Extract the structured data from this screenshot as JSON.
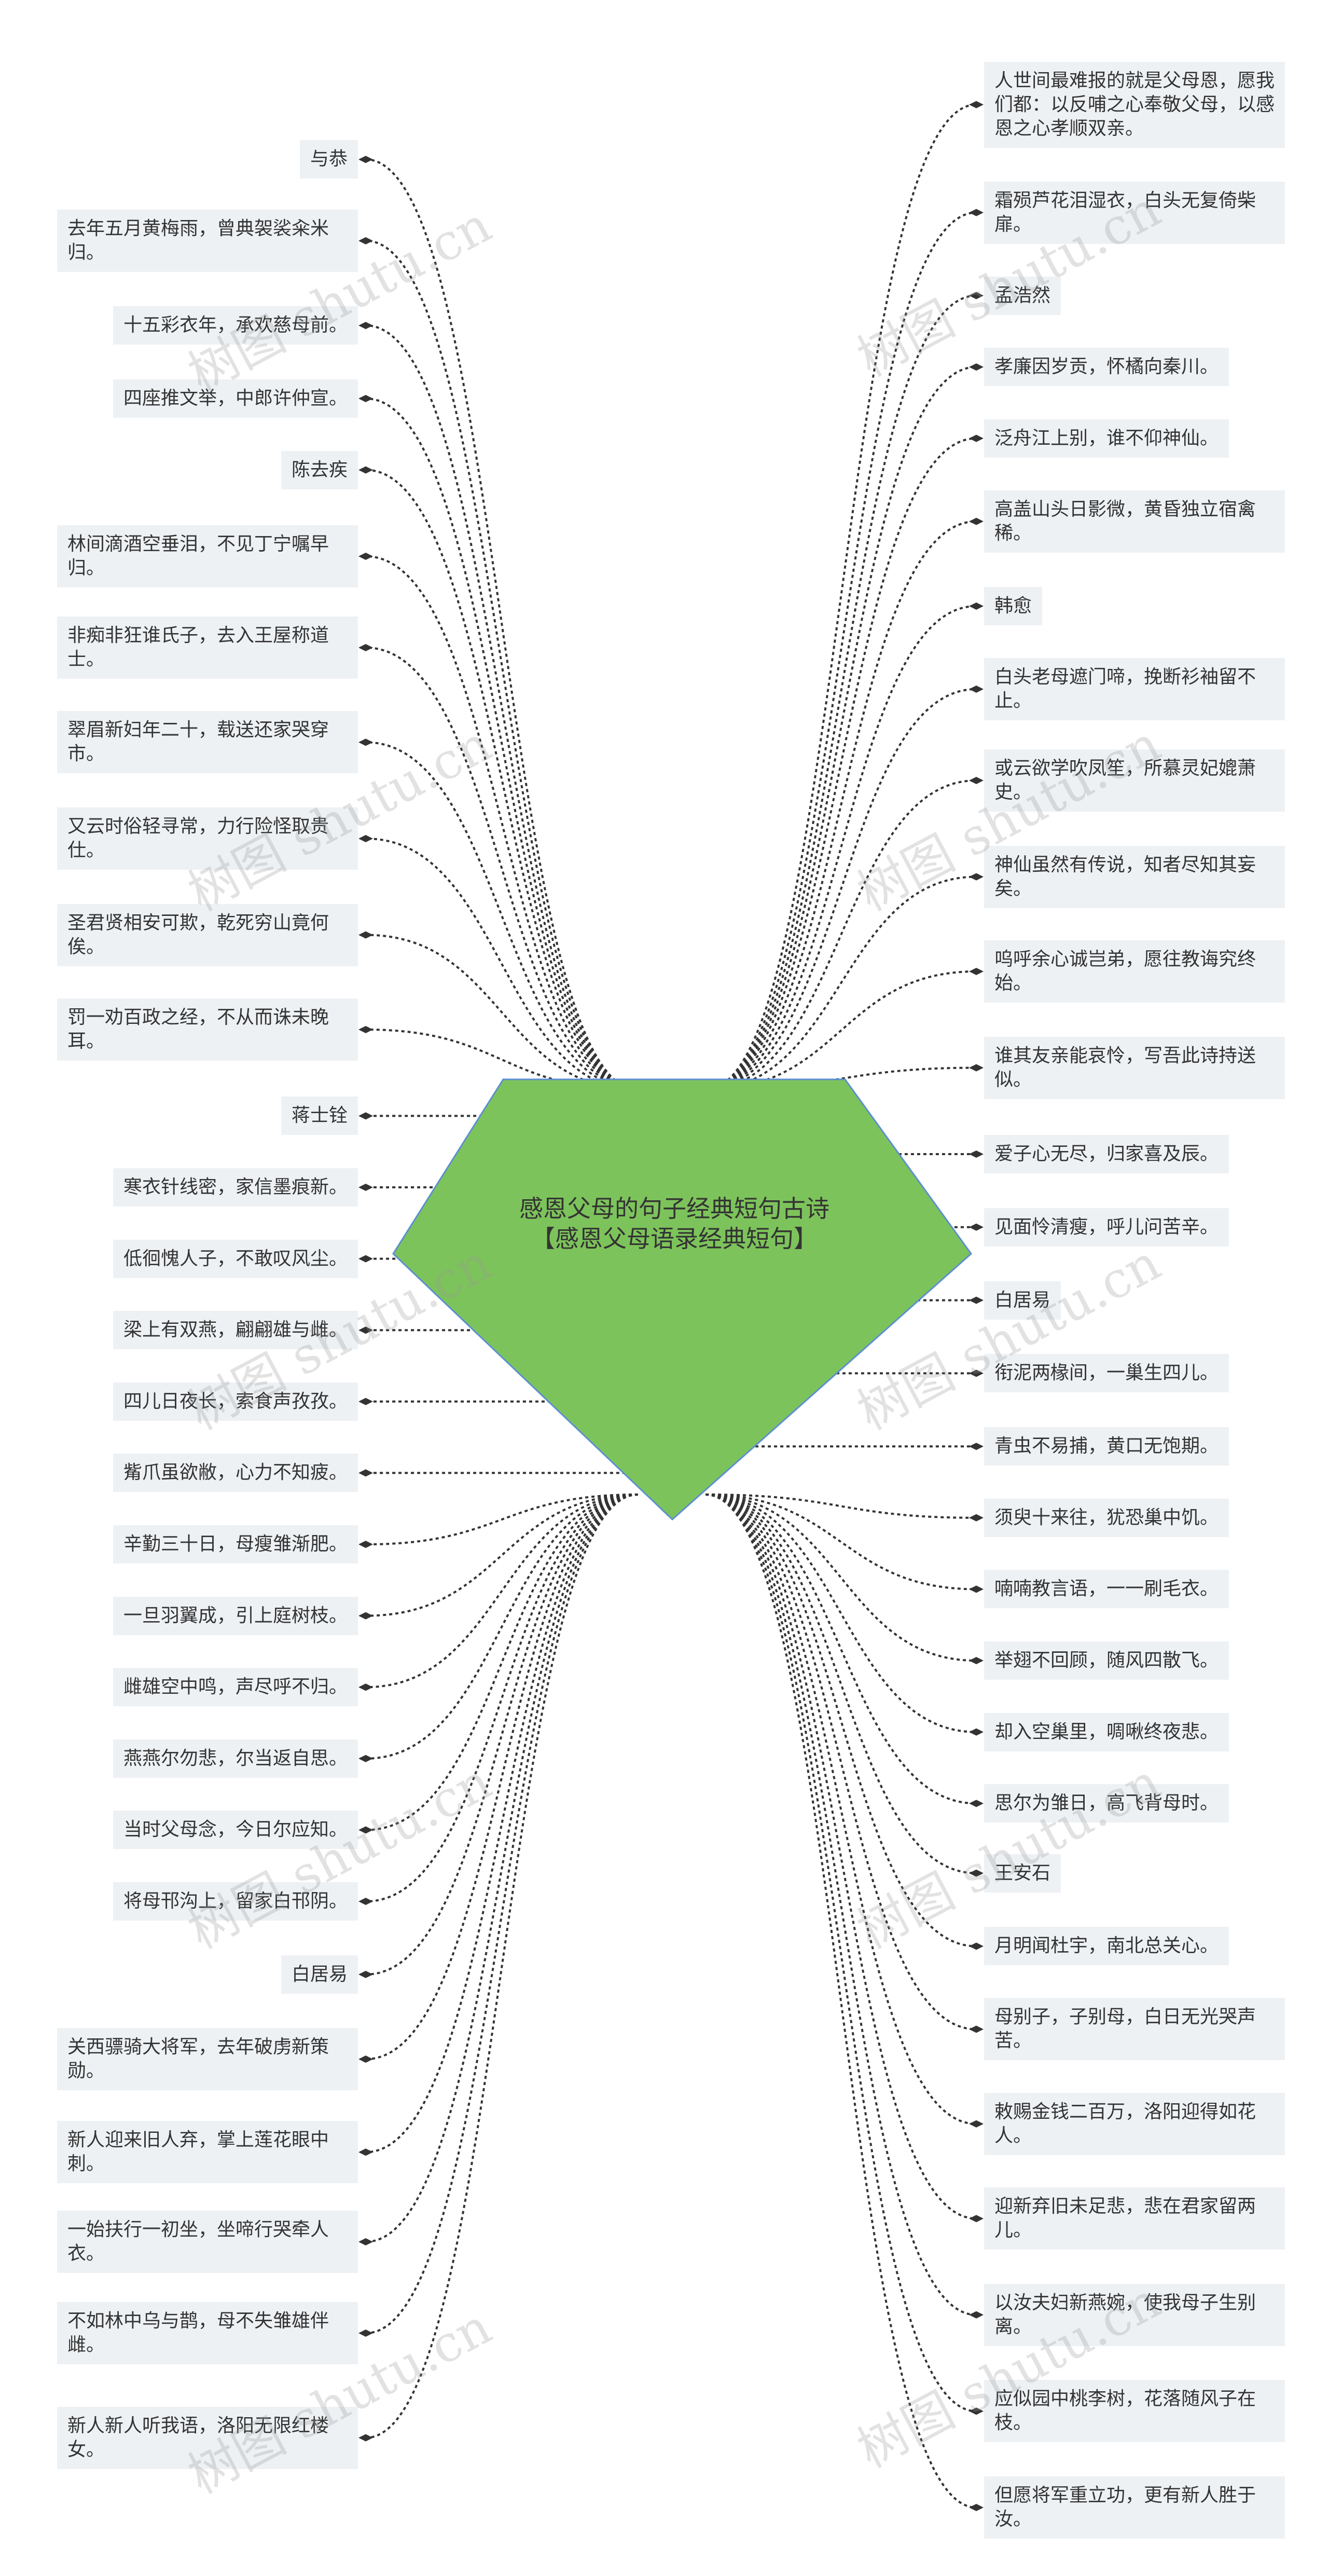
{
  "center": {
    "title": "感恩父母的句子经典短句古诗【感恩父母语录经典短句】",
    "fill": "#7dc35b",
    "stroke": "#5b8fd0"
  },
  "colors": {
    "node_bg": "#eef1f4",
    "connector": "#333333"
  },
  "watermark": "树图 shutu.cn",
  "left_nodes": [
    "与恭",
    "去年五月黄梅雨，曾典袈裟籴米归。",
    "十五彩衣年，承欢慈母前。",
    "四座推文举，中郎许仲宣。",
    "陈去疾",
    "林间滴酒空垂泪，不见丁宁嘱早归。",
    "非痴非狂谁氏子，去入王屋称道士。",
    "翠眉新妇年二十，载送还家哭穿市。",
    "又云时俗轻寻常，力行险怪取贵仕。",
    "圣君贤相安可欺，乾死穷山竟何俟。",
    "罚一劝百政之经，不从而诛未晚耳。",
    "蒋士铨",
    "寒衣针线密，家信墨痕新。",
    "低徊愧人子，不敢叹风尘。",
    "梁上有双燕，翩翩雄与雌。",
    "四儿日夜长，索食声孜孜。",
    "觜爪虽欲敝，心力不知疲。",
    "辛勤三十日，母瘦雏渐肥。",
    "一旦羽翼成，引上庭树枝。",
    "雌雄空中鸣，声尽呼不归。",
    "燕燕尔勿悲，尔当返自思。",
    "当时父母念，今日尔应知。",
    "将母邗沟上，留家白邗阴。",
    "白居易",
    "关西骠骑大将军，去年破虏新策勋。",
    "新人迎来旧人弃，掌上莲花眼中刺。",
    "一始扶行一初坐，坐啼行哭牵人衣。",
    "不如林中乌与鹊，母不失雏雄伴雌。",
    "新人新人听我语，洛阳无限红楼女。"
  ],
  "right_nodes": [
    "人世间最难报的就是父母恩，愿我们都：以反哺之心奉敬父母，以感恩之心孝顺双亲。",
    "霜殒芦花泪湿衣，白头无复倚柴扉。",
    "孟浩然",
    "孝廉因岁贡，怀橘向秦川。",
    "泛舟江上别，谁不仰神仙。",
    "高盖山头日影微，黄昏独立宿禽稀。",
    "韩愈",
    "白头老母遮门啼，挽断衫袖留不止。",
    "或云欲学吹凤笙，所慕灵妃媲萧史。",
    "神仙虽然有传说，知者尽知其妄矣。",
    "呜呼余心诚岂弟，愿往教诲究终始。",
    "谁其友亲能哀怜，写吾此诗持送似。",
    "爱子心无尽，归家喜及辰。",
    "见面怜清瘦，呼儿问苦辛。",
    "白居易",
    "衔泥两椽间，一巢生四儿。",
    "青虫不易捕，黄口无饱期。",
    "须臾十来往，犹恐巢中饥。",
    "喃喃教言语，一一刷毛衣。",
    "举翅不回顾，随风四散飞。",
    "却入空巢里，啁啾终夜悲。",
    "思尔为雏日，高飞背母时。",
    "王安石",
    "月明闻杜宇，南北总关心。",
    "母别子，子别母，白日无光哭声苦。",
    "敕赐金钱二百万，洛阳迎得如花人。",
    "迎新弃旧未足悲，悲在君家留两儿。",
    "以汝夫妇新燕婉，使我母子生别离。",
    "应似园中桃李树，花落随风子在枝。",
    "但愿将军重立功，更有新人胜于汝。"
  ]
}
